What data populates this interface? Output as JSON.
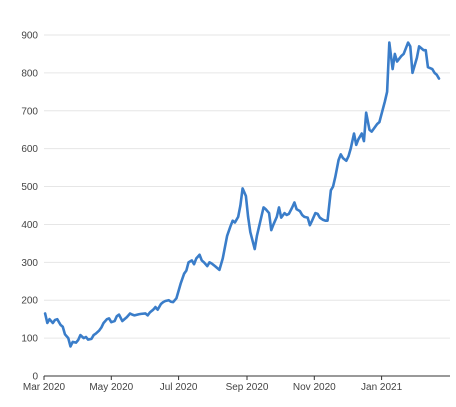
{
  "chart_data": {
    "type": "line",
    "title": "",
    "xlabel": "",
    "ylabel": "",
    "grid": true,
    "legend": "none",
    "line_color": "#3a7dc9",
    "xlim": [
      "2020-03-01",
      "2021-03-04"
    ],
    "ylim": [
      0,
      900
    ],
    "y_ticks": [
      0,
      100,
      200,
      300,
      400,
      500,
      600,
      700,
      800,
      900
    ],
    "x_ticks": [
      {
        "date": "2020-03-01",
        "label": "Mar 2020"
      },
      {
        "date": "2020-05-01",
        "label": "May 2020"
      },
      {
        "date": "2020-07-01",
        "label": "Jul 2020"
      },
      {
        "date": "2020-09-01",
        "label": "Sep 2020"
      },
      {
        "date": "2020-11-01",
        "label": "Nov 2020"
      },
      {
        "date": "2021-01-01",
        "label": "Jan 2021"
      }
    ],
    "series": [
      {
        "points": [
          [
            "2020-03-02",
            165
          ],
          [
            "2020-03-04",
            140
          ],
          [
            "2020-03-06",
            150
          ],
          [
            "2020-03-09",
            140
          ],
          [
            "2020-03-11",
            148
          ],
          [
            "2020-03-13",
            150
          ],
          [
            "2020-03-16",
            135
          ],
          [
            "2020-03-18",
            130
          ],
          [
            "2020-03-20",
            110
          ],
          [
            "2020-03-23",
            100
          ],
          [
            "2020-03-25",
            78
          ],
          [
            "2020-03-27",
            90
          ],
          [
            "2020-03-30",
            88
          ],
          [
            "2020-04-01",
            95
          ],
          [
            "2020-04-03",
            108
          ],
          [
            "2020-04-06",
            100
          ],
          [
            "2020-04-08",
            103
          ],
          [
            "2020-04-10",
            96
          ],
          [
            "2020-04-13",
            98
          ],
          [
            "2020-04-15",
            108
          ],
          [
            "2020-04-17",
            112
          ],
          [
            "2020-04-20",
            120
          ],
          [
            "2020-04-22",
            128
          ],
          [
            "2020-04-24",
            140
          ],
          [
            "2020-04-27",
            150
          ],
          [
            "2020-04-29",
            152
          ],
          [
            "2020-05-01",
            142
          ],
          [
            "2020-05-04",
            145
          ],
          [
            "2020-05-06",
            158
          ],
          [
            "2020-05-08",
            162
          ],
          [
            "2020-05-11",
            145
          ],
          [
            "2020-05-13",
            150
          ],
          [
            "2020-05-15",
            155
          ],
          [
            "2020-05-18",
            165
          ],
          [
            "2020-05-20",
            162
          ],
          [
            "2020-05-22",
            160
          ],
          [
            "2020-05-26",
            163
          ],
          [
            "2020-05-28",
            164
          ],
          [
            "2020-06-01",
            165
          ],
          [
            "2020-06-03",
            160
          ],
          [
            "2020-06-05",
            168
          ],
          [
            "2020-06-08",
            175
          ],
          [
            "2020-06-10",
            182
          ],
          [
            "2020-06-12",
            175
          ],
          [
            "2020-06-15",
            190
          ],
          [
            "2020-06-17",
            195
          ],
          [
            "2020-06-19",
            198
          ],
          [
            "2020-06-22",
            200
          ],
          [
            "2020-06-24",
            196
          ],
          [
            "2020-06-26",
            195
          ],
          [
            "2020-06-29",
            205
          ],
          [
            "2020-07-01",
            225
          ],
          [
            "2020-07-03",
            245
          ],
          [
            "2020-07-06",
            270
          ],
          [
            "2020-07-08",
            278
          ],
          [
            "2020-07-10",
            300
          ],
          [
            "2020-07-13",
            305
          ],
          [
            "2020-07-15",
            295
          ],
          [
            "2020-07-17",
            310
          ],
          [
            "2020-07-20",
            320
          ],
          [
            "2020-07-22",
            305
          ],
          [
            "2020-07-24",
            300
          ],
          [
            "2020-07-27",
            290
          ],
          [
            "2020-07-29",
            300
          ],
          [
            "2020-07-31",
            297
          ],
          [
            "2020-08-03",
            290
          ],
          [
            "2020-08-05",
            285
          ],
          [
            "2020-08-07",
            280
          ],
          [
            "2020-08-10",
            310
          ],
          [
            "2020-08-12",
            340
          ],
          [
            "2020-08-14",
            370
          ],
          [
            "2020-08-17",
            395
          ],
          [
            "2020-08-19",
            410
          ],
          [
            "2020-08-21",
            405
          ],
          [
            "2020-08-24",
            420
          ],
          [
            "2020-08-26",
            450
          ],
          [
            "2020-08-28",
            495
          ],
          [
            "2020-08-31",
            475
          ],
          [
            "2020-09-02",
            420
          ],
          [
            "2020-09-04",
            380
          ],
          [
            "2020-09-08",
            335
          ],
          [
            "2020-09-10",
            370
          ],
          [
            "2020-09-14",
            420
          ],
          [
            "2020-09-16",
            445
          ],
          [
            "2020-09-18",
            440
          ],
          [
            "2020-09-21",
            430
          ],
          [
            "2020-09-23",
            385
          ],
          [
            "2020-09-25",
            400
          ],
          [
            "2020-09-28",
            420
          ],
          [
            "2020-09-30",
            445
          ],
          [
            "2020-10-02",
            418
          ],
          [
            "2020-10-05",
            430
          ],
          [
            "2020-10-07",
            425
          ],
          [
            "2020-10-09",
            428
          ],
          [
            "2020-10-12",
            445
          ],
          [
            "2020-10-14",
            458
          ],
          [
            "2020-10-16",
            440
          ],
          [
            "2020-10-19",
            435
          ],
          [
            "2020-10-21",
            425
          ],
          [
            "2020-10-23",
            420
          ],
          [
            "2020-10-26",
            418
          ],
          [
            "2020-10-28",
            398
          ],
          [
            "2020-10-30",
            410
          ],
          [
            "2020-11-02",
            430
          ],
          [
            "2020-11-04",
            428
          ],
          [
            "2020-11-06",
            418
          ],
          [
            "2020-11-09",
            412
          ],
          [
            "2020-11-11",
            410
          ],
          [
            "2020-11-13",
            410
          ],
          [
            "2020-11-16",
            490
          ],
          [
            "2020-11-18",
            500
          ],
          [
            "2020-11-20",
            525
          ],
          [
            "2020-11-23",
            570
          ],
          [
            "2020-11-25",
            585
          ],
          [
            "2020-11-27",
            575
          ],
          [
            "2020-11-30",
            568
          ],
          [
            "2020-12-02",
            580
          ],
          [
            "2020-12-04",
            600
          ],
          [
            "2020-12-07",
            640
          ],
          [
            "2020-12-09",
            610
          ],
          [
            "2020-12-11",
            625
          ],
          [
            "2020-12-14",
            640
          ],
          [
            "2020-12-16",
            620
          ],
          [
            "2020-12-18",
            695
          ],
          [
            "2020-12-21",
            650
          ],
          [
            "2020-12-23",
            645
          ],
          [
            "2020-12-28",
            665
          ],
          [
            "2020-12-30",
            670
          ],
          [
            "2021-01-04",
            725
          ],
          [
            "2021-01-06",
            750
          ],
          [
            "2021-01-08",
            880
          ],
          [
            "2021-01-11",
            810
          ],
          [
            "2021-01-13",
            850
          ],
          [
            "2021-01-15",
            830
          ],
          [
            "2021-01-19",
            845
          ],
          [
            "2021-01-21",
            850
          ],
          [
            "2021-01-25",
            880
          ],
          [
            "2021-01-27",
            870
          ],
          [
            "2021-01-29",
            800
          ],
          [
            "2021-02-02",
            840
          ],
          [
            "2021-02-04",
            870
          ],
          [
            "2021-02-08",
            860
          ],
          [
            "2021-02-10",
            860
          ],
          [
            "2021-02-12",
            815
          ],
          [
            "2021-02-16",
            810
          ],
          [
            "2021-02-18",
            800
          ],
          [
            "2021-02-20",
            795
          ],
          [
            "2021-02-22",
            785
          ]
        ]
      }
    ]
  }
}
